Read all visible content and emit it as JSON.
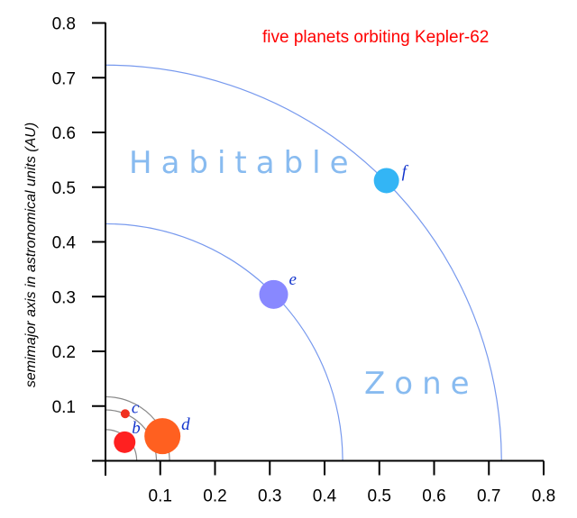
{
  "chart_data": {
    "type": "scatter",
    "title": "five planets orbiting Kepler-62",
    "xlabel": "",
    "ylabel": "semimajor axis in astronomical units (AU)",
    "xlim": [
      0,
      0.8
    ],
    "ylim": [
      0,
      0.8
    ],
    "x_ticks": [
      "0.1",
      "0.2",
      "0.3",
      "0.4",
      "0.5",
      "0.6",
      "0.7",
      "0.8"
    ],
    "y_ticks": [
      "0.1",
      "0.2",
      "0.3",
      "0.4",
      "0.5",
      "0.6",
      "0.7",
      "0.8"
    ],
    "grid": false,
    "annotations": {
      "zone_word_1": "Habitable",
      "zone_word_2": "Zone"
    },
    "habitable_zone": {
      "inner_au": 0.433,
      "outer_au": 0.723,
      "color": "#7799ee"
    },
    "orbit_arcs_gray_au": [
      0.057,
      0.093,
      0.117
    ],
    "planets": [
      {
        "name": "b",
        "semimajor_axis_au": 0.0493,
        "x": 0.035,
        "y": 0.034,
        "radius_px": 12,
        "color": "#ff2020"
      },
      {
        "name": "c",
        "semimajor_axis_au": 0.0929,
        "x": 0.036,
        "y": 0.086,
        "radius_px": 5,
        "color": "#f03020"
      },
      {
        "name": "d",
        "semimajor_axis_au": 0.12,
        "x": 0.104,
        "y": 0.045,
        "radius_px": 20,
        "color": "#ff6020"
      },
      {
        "name": "e",
        "semimajor_axis_au": 0.427,
        "x": 0.307,
        "y": 0.304,
        "radius_px": 16,
        "color": "#8888ff"
      },
      {
        "name": "f",
        "semimajor_axis_au": 0.718,
        "x": 0.513,
        "y": 0.512,
        "radius_px": 14,
        "color": "#33b5f5"
      }
    ]
  }
}
